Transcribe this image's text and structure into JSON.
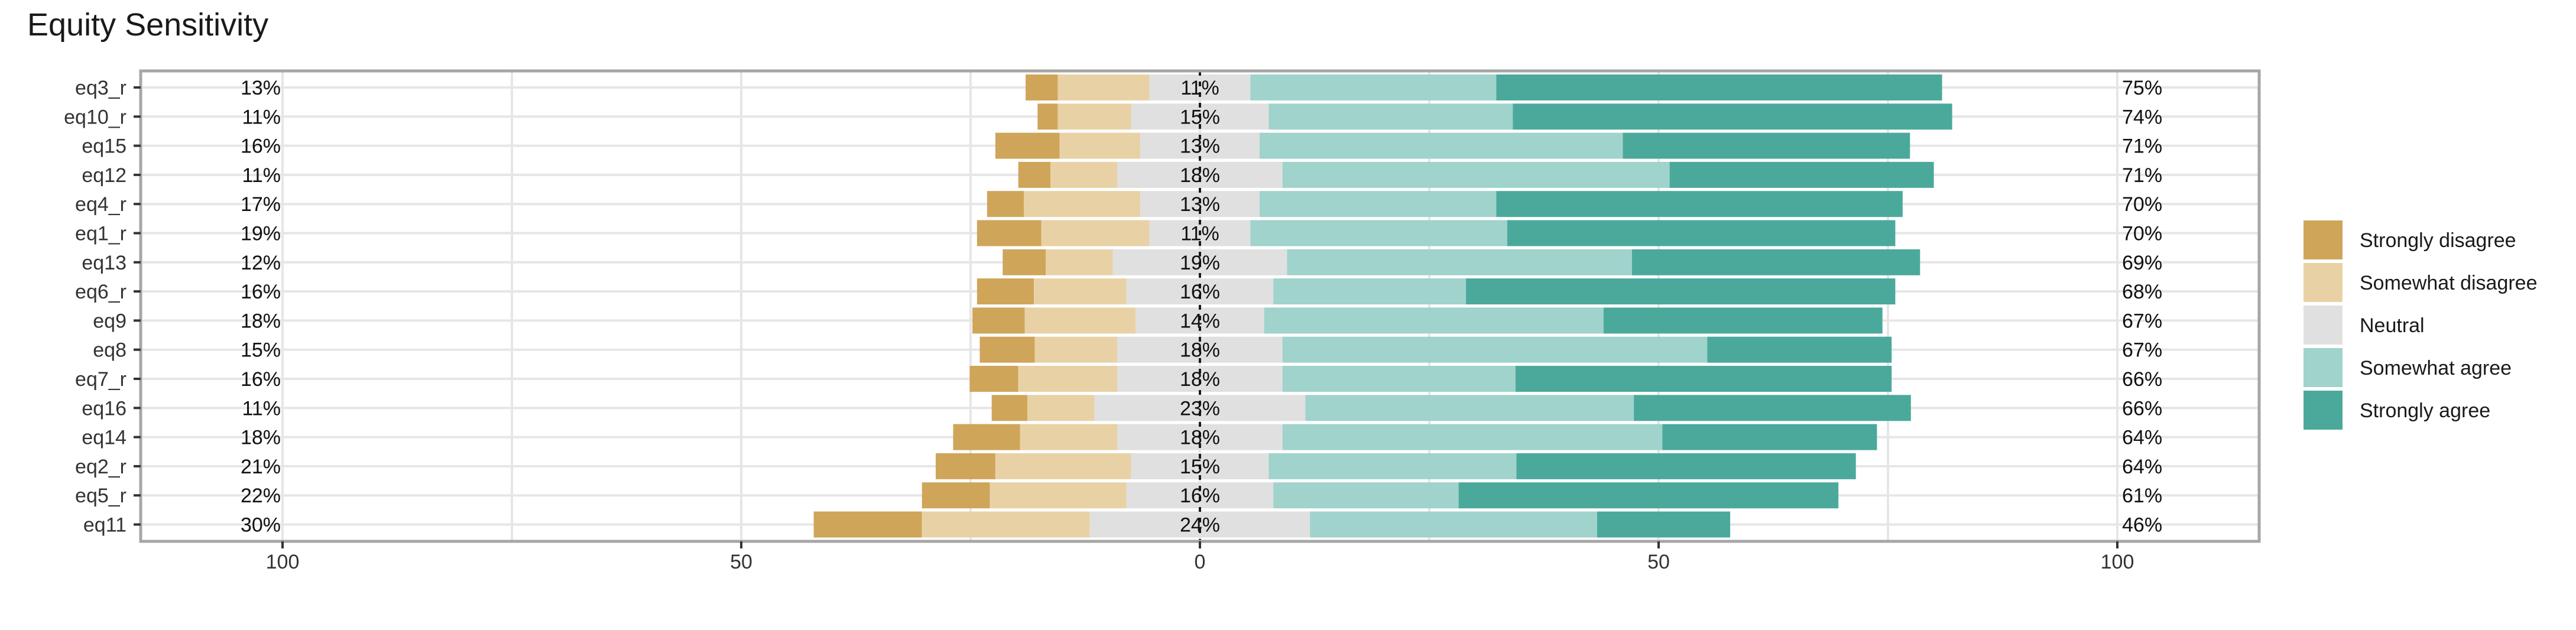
{
  "chart_data": {
    "type": "bar",
    "subtype": "diverging-stacked-likert",
    "title": "Equity Sensitivity",
    "xlabel": "",
    "ylabel": "",
    "xlim": [
      -100,
      100
    ],
    "x_ticks": [
      -100,
      -50,
      0,
      50,
      100
    ],
    "x_tick_labels": [
      "100",
      "50",
      "0",
      "50",
      "100"
    ],
    "grid": true,
    "legend_position": "right",
    "categories": [
      "eq3_r",
      "eq10_r",
      "eq15",
      "eq12",
      "eq4_r",
      "eq1_r",
      "eq13",
      "eq6_r",
      "eq9",
      "eq8",
      "eq7_r",
      "eq16",
      "eq14",
      "eq2_r",
      "eq5_r",
      "eq11"
    ],
    "series": [
      {
        "name": "Strongly disagree",
        "color": "#CFA55A",
        "values": [
          3.5,
          2.2,
          7.0,
          3.5,
          4.0,
          7.0,
          4.7,
          6.2,
          5.7,
          6.0,
          5.3,
          3.9,
          7.3,
          6.5,
          7.4,
          11.8
        ]
      },
      {
        "name": "Somewhat disagree",
        "color": "#E8D2A5",
        "values": [
          10.0,
          8.0,
          8.8,
          7.3,
          12.7,
          11.8,
          7.3,
          10.1,
          12.1,
          9.0,
          10.8,
          7.3,
          10.6,
          14.8,
          14.9,
          18.3
        ]
      },
      {
        "name": "Neutral",
        "color": "#E0E0E0",
        "values": [
          11,
          15,
          13,
          18,
          13,
          11,
          19,
          16,
          14,
          18,
          18,
          23,
          18,
          15,
          16,
          24
        ]
      },
      {
        "name": "Somewhat agree",
        "color": "#9FD3CC",
        "values": [
          26.8,
          26.6,
          39.6,
          42.2,
          25.8,
          28.0,
          37.6,
          21.0,
          37.0,
          46.3,
          25.4,
          35.8,
          41.4,
          27.0,
          20.2,
          31.3
        ]
      },
      {
        "name": "Strongly agree",
        "color": "#4BA99C",
        "values": [
          48.6,
          47.9,
          31.3,
          28.8,
          44.3,
          42.3,
          31.4,
          46.8,
          30.4,
          20.1,
          41.0,
          30.2,
          23.4,
          37.0,
          41.4,
          14.5
        ]
      }
    ],
    "left_labels": [
      "13%",
      "11%",
      "16%",
      "11%",
      "17%",
      "19%",
      "12%",
      "16%",
      "18%",
      "15%",
      "16%",
      "11%",
      "18%",
      "21%",
      "22%",
      "30%"
    ],
    "center_labels": [
      "11%",
      "15%",
      "13%",
      "18%",
      "13%",
      "11%",
      "19%",
      "16%",
      "14%",
      "18%",
      "18%",
      "23%",
      "18%",
      "15%",
      "16%",
      "24%"
    ],
    "right_labels": [
      "75%",
      "74%",
      "71%",
      "71%",
      "70%",
      "70%",
      "69%",
      "68%",
      "67%",
      "67%",
      "66%",
      "66%",
      "64%",
      "64%",
      "61%",
      "46%"
    ],
    "colors": {
      "panel_border": "#A6A6A6",
      "grid": "#E6E6E6",
      "zero_line": "#1a1a1a"
    }
  }
}
